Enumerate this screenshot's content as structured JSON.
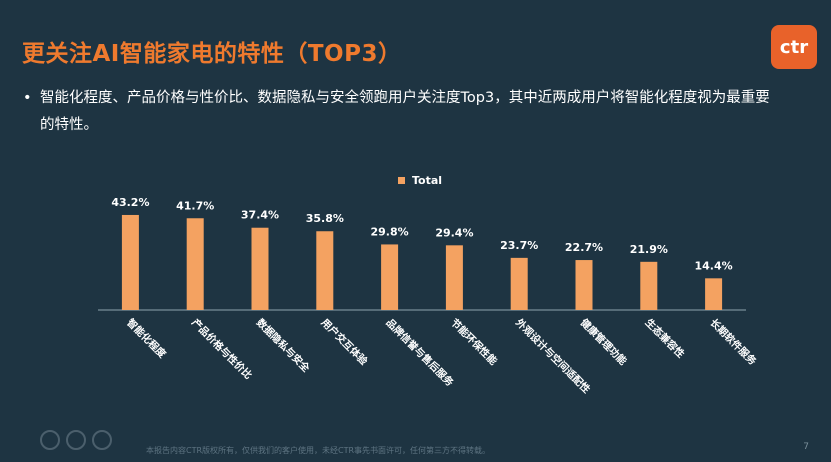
{
  "title": "更关注AI智能家电的特性（TOP3）",
  "logo_text": "ctr",
  "bullet_text": "智能化程度、产品价格与性价比、数据隐私与安全领跑用户关注度Top3，其中近两成用户将智能化程度视为最重要的特性。",
  "footer_text": "本报告内容CTR版权所有，仅供我们的客户使用，未经CTR事先书面许可，任何第三方不得转载。",
  "page_number": "7",
  "colors": {
    "bar": "#f4a261",
    "title": "#ef7a2e",
    "background": "#1e3442"
  },
  "chart_data": {
    "type": "bar",
    "legend": "Total",
    "legend_position": "top-center",
    "grid": false,
    "ylim": [
      0,
      50
    ],
    "categories": [
      "智能化程度",
      "产品价格与性价比",
      "数据隐私与安全",
      "用户交互体验",
      "品牌信誉与售后服务",
      "节能环保性能",
      "外观设计与空间适配性",
      "健康管理功能",
      "生态兼容性",
      "长期软件服务"
    ],
    "values": [
      43.2,
      41.7,
      37.4,
      35.8,
      29.8,
      29.4,
      23.7,
      22.7,
      21.9,
      14.4
    ],
    "value_labels": [
      "43.2%",
      "41.7%",
      "37.4%",
      "35.8%",
      "29.8%",
      "29.4%",
      "23.7%",
      "22.7%",
      "21.9%",
      "14.4%"
    ]
  }
}
